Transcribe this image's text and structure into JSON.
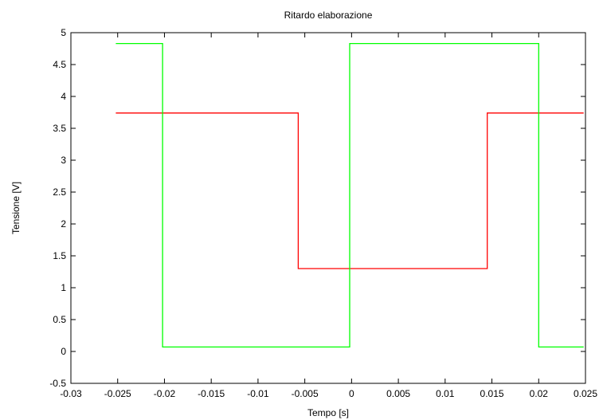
{
  "chart_data": {
    "type": "line",
    "title": "Ritardo elaborazione",
    "xlabel": "Tempo [s]",
    "ylabel": "Tensione [V]",
    "xlim": [
      -0.03,
      0.025
    ],
    "ylim": [
      -0.5,
      5
    ],
    "grid": false,
    "legend": "none",
    "x_ticks": [
      -0.03,
      -0.025,
      -0.02,
      -0.015,
      -0.01,
      -0.005,
      0,
      0.005,
      0.01,
      0.015,
      0.02,
      0.025
    ],
    "x_tick_labels": [
      "-0.03",
      "-0.025",
      "-0.02",
      "-0.015",
      "-0.01",
      "-0.005",
      "0",
      "0.005",
      "0.01",
      "0.015",
      "0.02",
      "0.025"
    ],
    "y_ticks": [
      -0.5,
      0,
      0.5,
      1,
      1.5,
      2,
      2.5,
      3,
      3.5,
      4,
      4.5,
      5
    ],
    "y_tick_labels": [
      "-0.5",
      "0",
      "0.5",
      "1",
      "1.5",
      "2",
      "2.5",
      "3",
      "3.5",
      "4",
      "4.5",
      "5"
    ],
    "series": [
      {
        "color": "#ff0000",
        "x": [
          -0.0252,
          -0.0057,
          -0.0057,
          0.0145,
          0.0145,
          0.0248
        ],
        "y": [
          3.74,
          3.74,
          1.3,
          1.3,
          3.74,
          3.74
        ]
      },
      {
        "color": "#00ff00",
        "x": [
          -0.0252,
          -0.0202,
          -0.0202,
          -0.0002,
          -0.0002,
          0.02,
          0.02,
          0.0248
        ],
        "y": [
          4.83,
          4.83,
          0.07,
          0.07,
          4.83,
          4.83,
          0.07,
          0.07
        ]
      }
    ]
  }
}
